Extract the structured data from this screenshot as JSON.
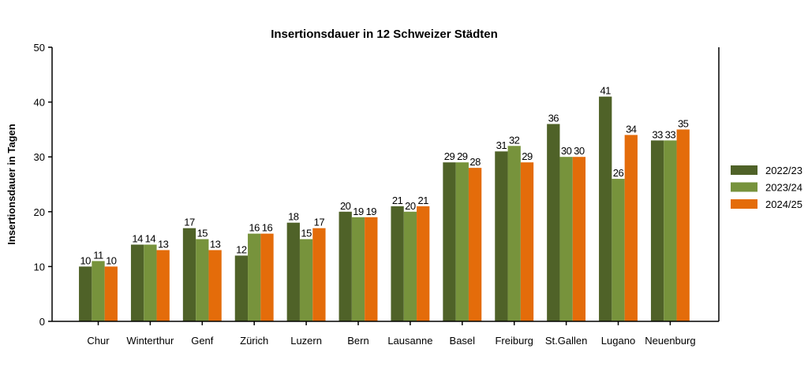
{
  "chart_data": {
    "type": "bar",
    "title": "Insertionsdauer in 12 Schweizer Städten",
    "xlabel": "",
    "ylabel": "Insertionsdauer in Tagen",
    "ylim": [
      0,
      50
    ],
    "yticks": [
      0,
      10,
      20,
      30,
      40,
      50
    ],
    "grid": false,
    "legend_position": "right",
    "categories": [
      "Chur",
      "Winterthur",
      "Genf",
      "Zürich",
      "Luzern",
      "Bern",
      "Lausanne",
      "Basel",
      "Freiburg",
      "St.Gallen",
      "Lugano",
      "Neuenburg"
    ],
    "series": [
      {
        "name": "2022/23",
        "color": "#4f6228",
        "values": [
          10,
          14,
          17,
          12,
          18,
          20,
          21,
          29,
          31,
          36,
          41,
          33
        ]
      },
      {
        "name": "2023/24",
        "color": "#77933c",
        "values": [
          11,
          14,
          15,
          16,
          15,
          19,
          20,
          29,
          32,
          30,
          26,
          33
        ]
      },
      {
        "name": "2024/25",
        "color": "#e46c0a",
        "values": [
          10,
          13,
          13,
          16,
          17,
          19,
          21,
          28,
          29,
          30,
          34,
          35
        ]
      }
    ]
  }
}
